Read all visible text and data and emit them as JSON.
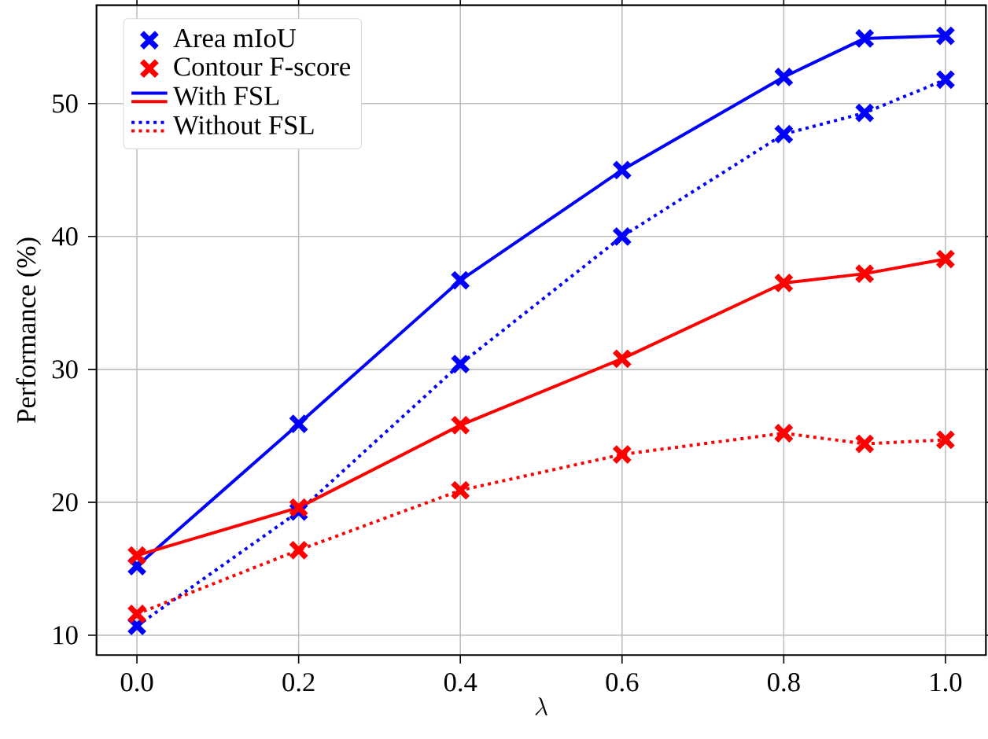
{
  "chart_data": {
    "type": "line",
    "xlabel": "\\lambda",
    "ylabel": "Performance (%)",
    "x": [
      0.0,
      0.2,
      0.4,
      0.6,
      0.8,
      0.9,
      1.0
    ],
    "series": [
      {
        "name": "Area mIoU",
        "color": "#0000ff",
        "line_style": "solid",
        "values": [
          15.2,
          25.9,
          36.7,
          45.0,
          52.0,
          54.9,
          55.1
        ]
      },
      {
        "name": "Contour F-score",
        "color": "#ff0000",
        "line_style": "solid",
        "values": [
          16.0,
          19.6,
          25.8,
          30.8,
          36.5,
          37.2,
          38.3
        ]
      },
      {
        "color": "#0000ff",
        "line_style": "dotted",
        "values": [
          10.7,
          19.3,
          30.4,
          40.0,
          47.7,
          49.3,
          51.8
        ]
      },
      {
        "color": "#ff0000",
        "line_style": "dotted",
        "values": [
          11.6,
          16.4,
          20.9,
          23.6,
          25.2,
          24.4,
          24.7
        ]
      }
    ],
    "annotations": [
      "With FSL",
      "Without FSL"
    ],
    "marker": "cross",
    "grid": true,
    "legend": "top left",
    "xlim": [
      -0.05,
      1.05
    ],
    "ylim": [
      8.5,
      57.4
    ],
    "xticks": [
      {
        "value": 0,
        "label": "0.0"
      },
      0.2,
      0.4,
      0.6,
      0.8,
      {
        "value": 1,
        "label": "1.0"
      }
    ],
    "yticks": [
      10,
      20,
      30,
      40,
      50
    ]
  }
}
